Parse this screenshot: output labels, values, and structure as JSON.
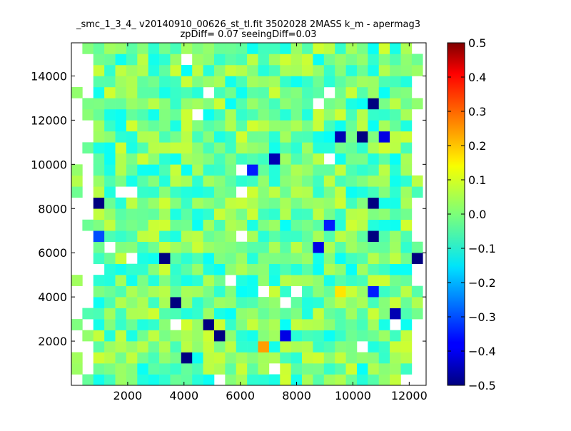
{
  "chart_data": {
    "type": "heatmap",
    "title_line1": "_smc_1_3_4_ v20140910_00626_st_tl.fit 3502028 2MASS k_m - apermag3",
    "title_line2": "zpDiff= 0.07 seeingDiff=0.03",
    "xlabel": "",
    "ylabel": "",
    "xlim": [
      0,
      12600
    ],
    "ylim": [
      0,
      15500
    ],
    "x_ticks": [
      2000,
      4000,
      6000,
      8000,
      10000,
      12000
    ],
    "y_ticks": [
      2000,
      4000,
      6000,
      8000,
      10000,
      12000,
      14000
    ],
    "cell_size": [
      390,
      500
    ],
    "grid": false,
    "colormap": "jet",
    "colorbar": {
      "min": -0.5,
      "max": 0.5,
      "ticks": [
        0.5,
        0.4,
        0.3,
        0.2,
        0.1,
        0.0,
        -0.1,
        -0.2,
        -0.3,
        -0.4,
        -0.5
      ],
      "tick_labels": [
        "0.5",
        "0.4",
        "0.3",
        "0.2",
        "0.1",
        "0.0",
        "−0.1",
        "−0.2",
        "−0.3",
        "−0.4",
        "−0.5"
      ]
    },
    "notable_cells": [
      {
        "x": 975,
        "y": 8250,
        "value": -0.5
      },
      {
        "x": 975,
        "y": 6750,
        "value": -0.3
      },
      {
        "x": 3315,
        "y": 5750,
        "value": -0.5
      },
      {
        "x": 3705,
        "y": 3750,
        "value": -0.5
      },
      {
        "x": 4095,
        "y": 1250,
        "value": -0.5
      },
      {
        "x": 4875,
        "y": 2750,
        "value": -0.5
      },
      {
        "x": 5265,
        "y": 2250,
        "value": -0.5
      },
      {
        "x": 6435,
        "y": 9750,
        "value": -0.35
      },
      {
        "x": 7215,
        "y": 10250,
        "value": -0.45
      },
      {
        "x": 6825,
        "y": 1750,
        "value": 0.22
      },
      {
        "x": 7605,
        "y": 2250,
        "value": -0.4
      },
      {
        "x": 8775,
        "y": 6250,
        "value": -0.4
      },
      {
        "x": 9165,
        "y": 7250,
        "value": -0.35
      },
      {
        "x": 9555,
        "y": 4250,
        "value": 0.15
      },
      {
        "x": 9555,
        "y": 11250,
        "value": -0.45
      },
      {
        "x": 10335,
        "y": 11250,
        "value": -0.5
      },
      {
        "x": 10725,
        "y": 12750,
        "value": -0.5
      },
      {
        "x": 10725,
        "y": 8250,
        "value": -0.5
      },
      {
        "x": 10725,
        "y": 6750,
        "value": -0.5
      },
      {
        "x": 10725,
        "y": 4250,
        "value": -0.35
      },
      {
        "x": 11115,
        "y": 11250,
        "value": -0.4
      },
      {
        "x": 11505,
        "y": 3250,
        "value": -0.45
      },
      {
        "x": 12285,
        "y": 5750,
        "value": -0.5
      }
    ]
  }
}
